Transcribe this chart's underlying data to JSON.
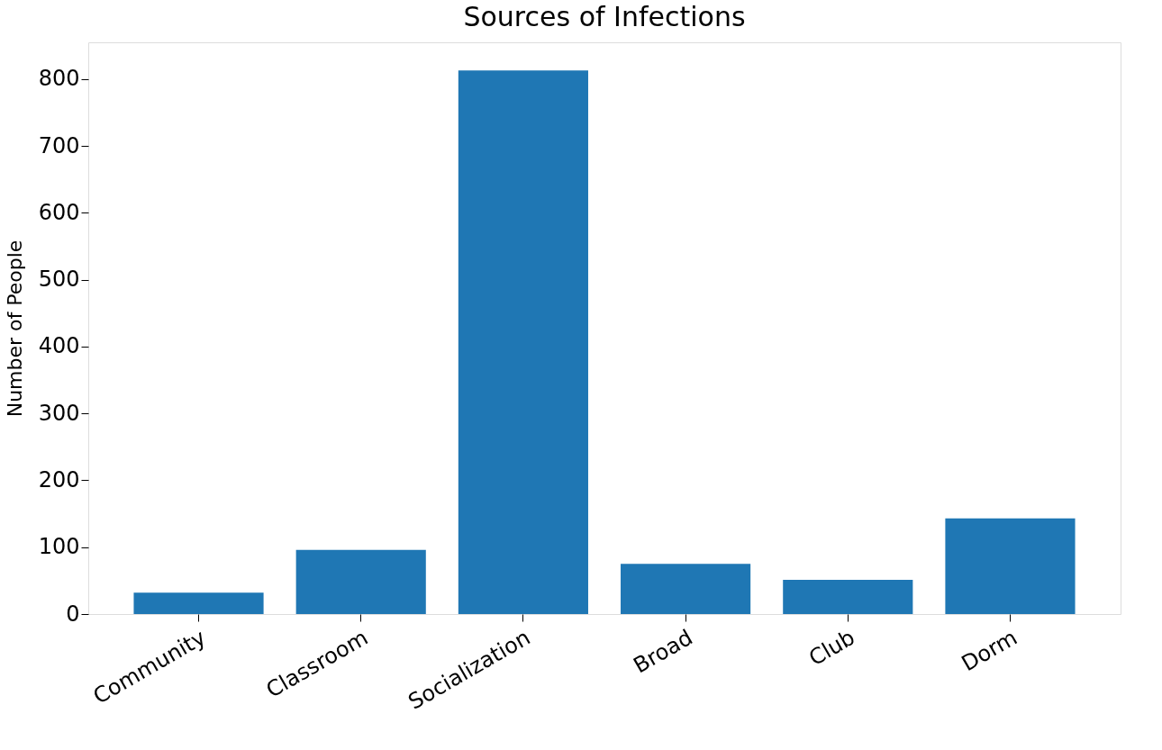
{
  "chart_data": {
    "type": "bar",
    "title": "Sources of Infections",
    "ylabel": "Number of People",
    "categories": [
      "Community",
      "Classroom",
      "Socialization",
      "Broad",
      "Club",
      "Dorm"
    ],
    "values": [
      32,
      96,
      813,
      75,
      51,
      143
    ],
    "color": "#1f77b4",
    "ylim": [
      0,
      855
    ],
    "yticks": [
      0,
      100,
      200,
      300,
      400,
      500,
      600,
      700,
      800
    ],
    "grid": false
  }
}
